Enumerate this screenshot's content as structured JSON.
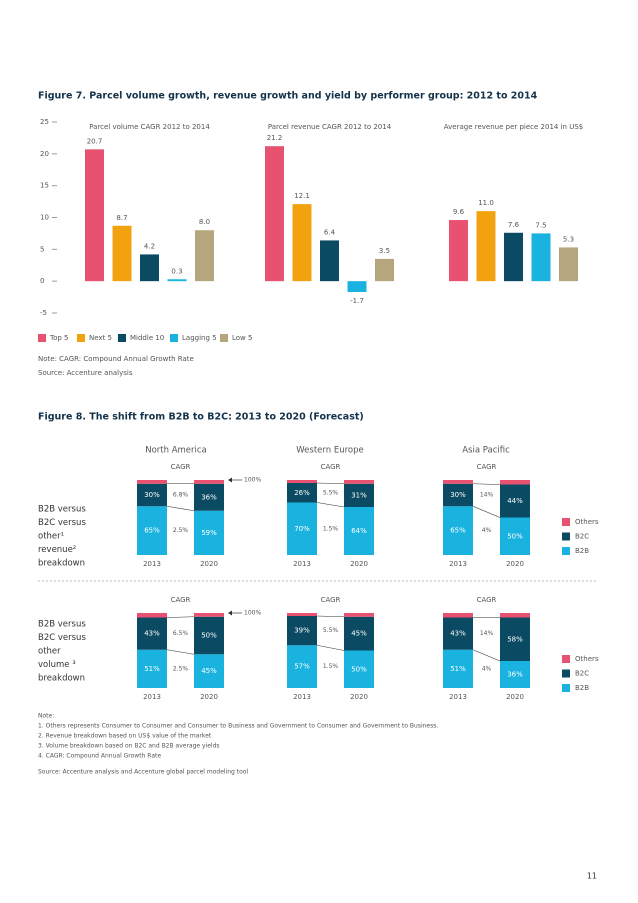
{
  "figure7": {
    "title": "Figure 7. Parcel volume growth, revenue growth and yield by performer group: 2012 to 2014",
    "ylim": [
      -5,
      25
    ],
    "yticks": [
      -5,
      0,
      5,
      10,
      15,
      20,
      25
    ],
    "legend": [
      {
        "name": "Top 5",
        "color": "#e8516f"
      },
      {
        "name": "Next 5",
        "color": "#f2a20f"
      },
      {
        "name": "Middle 10",
        "color": "#0b4a63"
      },
      {
        "name": "Lagging 5",
        "color": "#1ab3e0"
      },
      {
        "name": "Low 5",
        "color": "#b5a67e"
      }
    ],
    "panels": [
      {
        "subtitle": "Parcel volume CAGR 2012 to 2014",
        "values": [
          20.7,
          8.7,
          4.2,
          0.3,
          8.0
        ],
        "value_labels": [
          "20.7",
          "8.7",
          "4.2",
          "0.3",
          "8.0"
        ]
      },
      {
        "subtitle": "Parcel revenue CAGR 2012 to 2014",
        "values": [
          21.2,
          12.1,
          6.4,
          -1.7,
          3.5
        ],
        "value_labels": [
          "21.2",
          "12.1",
          "6.4",
          "-1.7",
          "3.5"
        ]
      },
      {
        "subtitle": "Average revenue per piece 2014 in US$",
        "values": [
          9.6,
          11.0,
          7.6,
          7.5,
          5.3
        ],
        "value_labels": [
          "9.6",
          "11.0",
          "7.6",
          "7.5",
          "5.3"
        ]
      }
    ],
    "note": "Note: CAGR: Compound Annual Growth Rate",
    "source": "Source: Accenture analysis"
  },
  "figure8": {
    "title": "Figure 8. The shift from B2B to B2C: 2013 to 2020 (Forecast)",
    "regions": [
      "North America",
      "Western Europe",
      "Asia Pacific"
    ],
    "legend": [
      {
        "name": "Others",
        "color": "#e8516f"
      },
      {
        "name": "B2C",
        "color": "#0b4a63"
      },
      {
        "name": "B2B",
        "color": "#1ab3e0"
      }
    ],
    "rows": [
      {
        "label_lines": [
          "B2B versus",
          "B2C versus",
          "other¹",
          "revenue²",
          "breakdown"
        ],
        "panels": [
          {
            "cagr_title": "CAGR",
            "years": [
              "2013",
              "2020"
            ],
            "b2b": [
              65,
              59
            ],
            "b2b_labels": [
              "65%",
              "59%"
            ],
            "b2c": [
              30,
              36
            ],
            "b2c_labels": [
              "30%",
              "36%"
            ],
            "others": [
              5,
              5
            ],
            "cagr_b2c": "6.8%",
            "cagr_b2b": "2.5%",
            "annotation": "100%"
          },
          {
            "cagr_title": "CAGR",
            "years": [
              "2013",
              "2020"
            ],
            "b2b": [
              70,
              64
            ],
            "b2b_labels": [
              "70%",
              "64%"
            ],
            "b2c": [
              26,
              31
            ],
            "b2c_labels": [
              "26%",
              "31%"
            ],
            "others": [
              4,
              5
            ],
            "cagr_b2c": "5.5%",
            "cagr_b2b": "1.5%"
          },
          {
            "cagr_title": "CAGR",
            "years": [
              "2013",
              "2020"
            ],
            "b2b": [
              65,
              50
            ],
            "b2b_labels": [
              "65%",
              "50%"
            ],
            "b2c": [
              30,
              44
            ],
            "b2c_labels": [
              "30%",
              "44%"
            ],
            "others": [
              5,
              6
            ],
            "cagr_b2c": "14%",
            "cagr_b2b": "4%"
          }
        ]
      },
      {
        "label_lines": [
          "B2B versus",
          "B2C versus",
          "other",
          "volume ³",
          "breakdown"
        ],
        "panels": [
          {
            "cagr_title": "CAGR",
            "years": [
              "2013",
              "2020"
            ],
            "b2b": [
              51,
              45
            ],
            "b2b_labels": [
              "51%",
              "45%"
            ],
            "b2c": [
              43,
              50
            ],
            "b2c_labels": [
              "43%",
              "50%"
            ],
            "others": [
              6,
              5
            ],
            "cagr_b2c": "6.5%",
            "cagr_b2b": "2.5%",
            "annotation": "100%"
          },
          {
            "cagr_title": "CAGR",
            "years": [
              "2013",
              "2020"
            ],
            "b2b": [
              57,
              50
            ],
            "b2b_labels": [
              "57%",
              "50%"
            ],
            "b2c": [
              39,
              45
            ],
            "b2c_labels": [
              "39%",
              "45%"
            ],
            "others": [
              4,
              5
            ],
            "cagr_b2c": "5.5%",
            "cagr_b2b": "1.5%"
          },
          {
            "cagr_title": "CAGR",
            "years": [
              "2013",
              "2020"
            ],
            "b2b": [
              51,
              36
            ],
            "b2b_labels": [
              "51%",
              "36%"
            ],
            "b2c": [
              43,
              58
            ],
            "b2c_labels": [
              "43%",
              "58%"
            ],
            "others": [
              6,
              6
            ],
            "cagr_b2c": "14%",
            "cagr_b2b": "4%"
          }
        ]
      }
    ],
    "notes": [
      "Note:",
      "1. Others represents Consumer to Consumer and Consumer to Business and Government to Consumer and Government to Business.",
      "2. Revenue breakdown based on US$ value of the market",
      "3. Volume breakdown based on B2C and B2B average yields",
      "4. CAGR: Compound Annual Growth Rate"
    ],
    "source": "Source: Accenture analysis and Accenture global parcel modeling tool"
  },
  "page_number": "11"
}
